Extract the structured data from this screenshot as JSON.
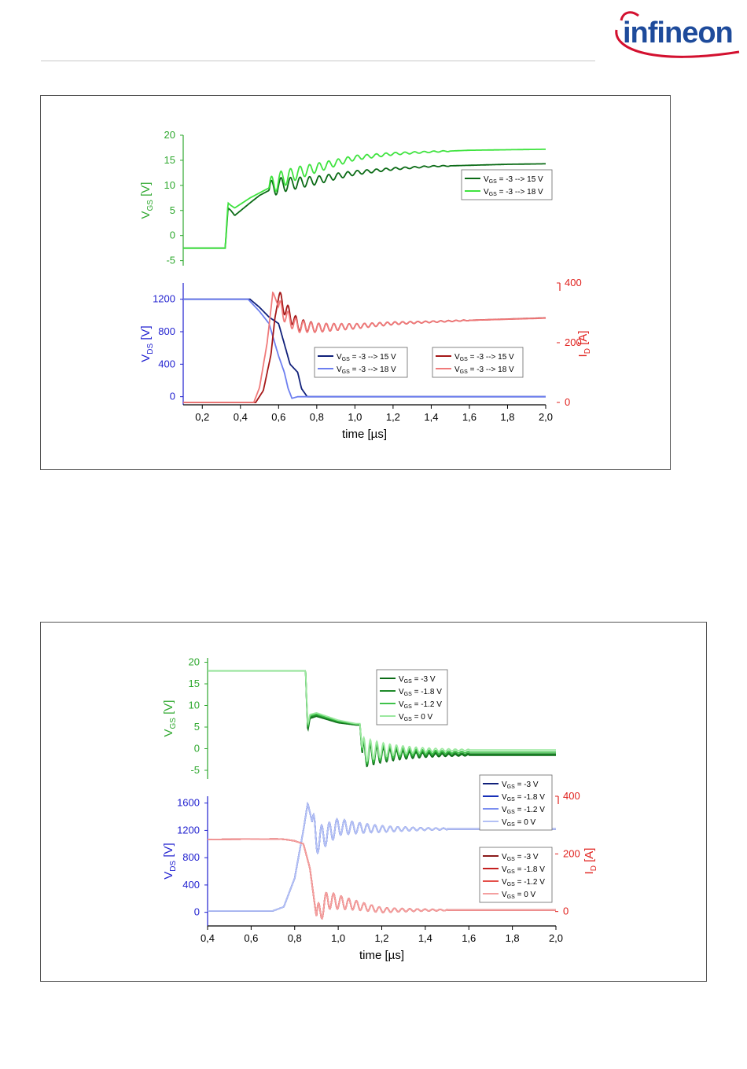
{
  "header": {
    "logo_text": "infineon",
    "colors": {
      "logo_text": "#1e4b9b",
      "logo_arc": "#d3102f",
      "rule": "#c8c8c8"
    }
  },
  "colors": {
    "vgs_axis": "#2ea82e",
    "vds_axis": "#1f1fcf",
    "id_axis": "#e0201c"
  },
  "chart_data": [
    {
      "type": "line",
      "title": "",
      "xlabel": "time [µs]",
      "xlim": [
        0.1,
        2.0
      ],
      "xticks": [
        "0,2",
        "0,4",
        "0,6",
        "0,8",
        "1,0",
        "1,2",
        "1,4",
        "1,6",
        "1,8",
        "2,0"
      ],
      "xtick_values": [
        0.2,
        0.4,
        0.6,
        0.8,
        1.0,
        1.2,
        1.4,
        1.6,
        1.8,
        2.0
      ],
      "grid": false,
      "panels": [
        {
          "name": "vgs",
          "ylabel": "V_GS [V]",
          "ylim": [
            -6,
            20
          ],
          "yticks": [
            "-5",
            "0",
            "5",
            "10",
            "15",
            "20"
          ],
          "ytick_values": [
            -5,
            0,
            5,
            10,
            15,
            20
          ],
          "legend": "right",
          "series": [
            {
              "name": "V_GS = -3 --> 15 V",
              "color": "#0b6b16",
              "x": [
                0.1,
                0.32,
                0.335,
                0.35,
                0.37,
                0.45,
                0.5,
                0.55,
                0.6,
                0.7,
                0.8,
                0.9,
                1.0,
                1.2,
                1.4,
                1.6,
                1.8,
                2.0
              ],
              "y": [
                -2.5,
                -2.5,
                5.5,
                5,
                4,
                6.5,
                8,
                9,
                10,
                10.5,
                11,
                11.8,
                12.5,
                13.3,
                13.8,
                14,
                14.2,
                14.3
              ],
              "ringing": {
                "start": 0.55,
                "end": 1.5,
                "amp": 1.8,
                "period": 0.05
              }
            },
            {
              "name": "V_GS = -3 --> 18 V",
              "color": "#3fe33f",
              "x": [
                0.1,
                0.32,
                0.335,
                0.35,
                0.37,
                0.45,
                0.5,
                0.55,
                0.6,
                0.7,
                0.8,
                0.9,
                1.0,
                1.2,
                1.4,
                1.6,
                1.8,
                2.0
              ],
              "y": [
                -2.5,
                -2.5,
                6.5,
                6,
                5.5,
                7.5,
                8.5,
                9.5,
                11,
                12.5,
                13.5,
                14.5,
                15.5,
                16.3,
                16.7,
                17,
                17.1,
                17.2
              ],
              "ringing": {
                "start": 0.55,
                "end": 1.5,
                "amp": 2.0,
                "period": 0.05
              }
            }
          ]
        },
        {
          "name": "vds_id",
          "ylabel": "V_DS [V]",
          "ylim": [
            -100,
            1400
          ],
          "yticks": [
            "0",
            "400",
            "800",
            "1200"
          ],
          "ytick_values": [
            0,
            400,
            800,
            1200
          ],
          "y2label": "I_D [A]",
          "y2lim": [
            -8,
            400
          ],
          "y2ticks": [
            "0",
            "200",
            "400"
          ],
          "y2tick_values": [
            0,
            200,
            400
          ],
          "legend": "center",
          "series_vds": [
            {
              "name": "V_GS = -3 --> 15 V",
              "color": "#10207a",
              "x": [
                0.1,
                0.45,
                0.5,
                0.55,
                0.6,
                0.63,
                0.66,
                0.7,
                0.72,
                0.75,
                2.0
              ],
              "y": [
                1200,
                1200,
                1100,
                980,
                900,
                650,
                400,
                300,
                100,
                0,
                0
              ]
            },
            {
              "name": "V_GS = -3 --> 18 V",
              "color": "#6d7ff0",
              "x": [
                0.1,
                0.44,
                0.5,
                0.55,
                0.6,
                0.63,
                0.65,
                0.67,
                0.7,
                2.0
              ],
              "y": [
                1200,
                1200,
                1050,
                900,
                500,
                300,
                100,
                -20,
                0,
                0
              ]
            }
          ],
          "series_id": [
            {
              "name": "V_GS = -3 --> 15 V",
              "color": "#a51818",
              "x": [
                0.1,
                0.48,
                0.52,
                0.56,
                0.58,
                0.6,
                0.65,
                0.7,
                0.8,
                1.0,
                1.2,
                1.6,
                2.0
              ],
              "y": [
                0,
                0,
                40,
                160,
                280,
                350,
                300,
                260,
                250,
                255,
                265,
                275,
                283
              ],
              "ringing": {
                "start": 0.6,
                "end": 1.6,
                "amp": 28,
                "period": 0.04
              }
            },
            {
              "name": "V_GS = -3 --> 18 V",
              "color": "#f07a7a",
              "x": [
                0.1,
                0.47,
                0.5,
                0.54,
                0.57,
                0.6,
                0.65,
                0.7,
                0.8,
                1.0,
                1.2,
                1.6,
                2.0
              ],
              "y": [
                0,
                0,
                50,
                200,
                370,
                320,
                280,
                255,
                250,
                255,
                265,
                275,
                282
              ],
              "ringing": {
                "start": 0.6,
                "end": 1.6,
                "amp": 28,
                "period": 0.04
              }
            }
          ]
        }
      ]
    },
    {
      "type": "line",
      "title": "",
      "xlabel": "time [µs]",
      "xlim": [
        0.4,
        2.0
      ],
      "xticks": [
        "0,4",
        "0,6",
        "0,8",
        "1,0",
        "1,2",
        "1,4",
        "1,6",
        "1,8",
        "2,0"
      ],
      "xtick_values": [
        0.4,
        0.6,
        0.8,
        1.0,
        1.2,
        1.4,
        1.6,
        1.8,
        2.0
      ],
      "grid": false,
      "panels": [
        {
          "name": "vgs",
          "ylabel": "V_GS [V]",
          "ylim": [
            -7,
            21
          ],
          "yticks": [
            "-5",
            "0",
            "5",
            "10",
            "15",
            "20"
          ],
          "ytick_values": [
            -5,
            0,
            5,
            10,
            15,
            20
          ],
          "legend": "top-right",
          "series": [
            {
              "name": "V_GS = -3 V",
              "color": "#0b6b16",
              "x": [
                0.4,
                0.85,
                0.86,
                0.87,
                0.9,
                1.0,
                1.08,
                1.1,
                1.11,
                2.0
              ],
              "y": [
                18,
                18,
                4,
                7,
                7.5,
                6,
                5.5,
                5.5,
                -1.5,
                -1.5
              ],
              "ringing": {
                "start": 1.11,
                "end": 1.6,
                "amp": 3,
                "period": 0.03
              }
            },
            {
              "name": "V_GS = -1.8 V",
              "color": "#1f8a2a",
              "x": [
                0.4,
                0.85,
                0.86,
                0.87,
                0.9,
                1.0,
                1.08,
                1.1,
                1.11,
                2.0
              ],
              "y": [
                18,
                18,
                4.5,
                7.3,
                7.7,
                6.2,
                5.6,
                5.6,
                -1.2,
                -1.2
              ],
              "ringing": {
                "start": 1.11,
                "end": 1.6,
                "amp": 3,
                "period": 0.03
              }
            },
            {
              "name": "V_GS = -1.2 V",
              "color": "#3fc24a",
              "x": [
                0.4,
                0.85,
                0.86,
                0.87,
                0.9,
                1.0,
                1.08,
                1.1,
                1.11,
                2.0
              ],
              "y": [
                18,
                18,
                5,
                7.6,
                8,
                6.4,
                5.7,
                5.7,
                -0.8,
                -0.8
              ],
              "ringing": {
                "start": 1.11,
                "end": 1.6,
                "amp": 3,
                "period": 0.03
              }
            },
            {
              "name": "V_GS = 0 V",
              "color": "#9be89f",
              "x": [
                0.4,
                0.85,
                0.86,
                0.87,
                0.9,
                1.0,
                1.08,
                1.1,
                1.11,
                2.0
              ],
              "y": [
                18,
                18,
                5.5,
                7.9,
                8.3,
                6.6,
                5.8,
                5.8,
                -0.3,
                -0.3
              ],
              "ringing": {
                "start": 1.11,
                "end": 1.6,
                "amp": 3,
                "period": 0.03
              }
            }
          ]
        },
        {
          "name": "vds_id",
          "ylabel": "V_DS [V]",
          "ylim": [
            -200,
            1700
          ],
          "yticks": [
            "0",
            "400",
            "800",
            "1200",
            "1600"
          ],
          "ytick_values": [
            0,
            400,
            800,
            1200,
            1600
          ],
          "y2label": "I_D [A]",
          "y2lim": [
            -50,
            400
          ],
          "y2ticks": [
            "0",
            "200",
            "400"
          ],
          "y2tick_values": [
            0,
            200,
            400
          ],
          "legend": "right",
          "series_vds": [
            {
              "name": "V_GS = -3 V",
              "color": "#10207a",
              "x": [
                0.4,
                0.7,
                0.75,
                0.8,
                0.84,
                0.86,
                0.9,
                1.0,
                1.2,
                2.0
              ],
              "y": [
                20,
                20,
                80,
                500,
                1200,
                1600,
                1050,
                1250,
                1220,
                1220
              ],
              "ringing": {
                "start": 0.88,
                "end": 1.5,
                "amp": 220,
                "period": 0.035
              }
            },
            {
              "name": "V_GS = -1.8 V",
              "color": "#1730b8",
              "x": [
                0.4,
                0.7,
                0.75,
                0.8,
                0.84,
                0.86,
                0.9,
                1.0,
                1.2,
                2.0
              ],
              "y": [
                20,
                20,
                80,
                500,
                1200,
                1600,
                1050,
                1250,
                1220,
                1220
              ],
              "ringing": {
                "start": 0.88,
                "end": 1.5,
                "amp": 220,
                "period": 0.035
              }
            },
            {
              "name": "V_GS = -1.2 V",
              "color": "#7b8ef0",
              "x": [
                0.4,
                0.7,
                0.75,
                0.8,
                0.84,
                0.86,
                0.9,
                1.0,
                1.2,
                2.0
              ],
              "y": [
                20,
                20,
                80,
                500,
                1200,
                1600,
                1050,
                1250,
                1220,
                1220
              ],
              "ringing": {
                "start": 0.88,
                "end": 1.5,
                "amp": 220,
                "period": 0.035
              }
            },
            {
              "name": "V_GS = 0 V",
              "color": "#b3c0f5",
              "x": [
                0.4,
                0.7,
                0.75,
                0.8,
                0.84,
                0.86,
                0.9,
                1.0,
                1.2,
                2.0
              ],
              "y": [
                20,
                20,
                80,
                500,
                1200,
                1600,
                1050,
                1250,
                1220,
                1220
              ],
              "ringing": {
                "start": 0.88,
                "end": 1.5,
                "amp": 220,
                "period": 0.035
              }
            }
          ],
          "series_id": [
            {
              "name": "V_GS = -3 V",
              "color": "#8a1a1a",
              "x": [
                0.4,
                0.72,
                0.76,
                0.8,
                0.84,
                0.87,
                0.9,
                0.95,
                1.2,
                2.0
              ],
              "y": [
                250,
                252,
                250,
                245,
                235,
                150,
                -20,
                40,
                5,
                5
              ],
              "ringing": {
                "start": 0.9,
                "end": 1.5,
                "amp": 40,
                "period": 0.035
              }
            },
            {
              "name": "V_GS = -1.8 V",
              "color": "#c42020",
              "x": [
                0.4,
                0.72,
                0.76,
                0.8,
                0.84,
                0.87,
                0.9,
                0.95,
                1.2,
                2.0
              ],
              "y": [
                250,
                252,
                250,
                245,
                235,
                150,
                -20,
                40,
                5,
                5
              ],
              "ringing": {
                "start": 0.9,
                "end": 1.5,
                "amp": 40,
                "period": 0.035
              }
            },
            {
              "name": "V_GS = -1.2 V",
              "color": "#e4504a",
              "x": [
                0.4,
                0.72,
                0.76,
                0.8,
                0.84,
                0.87,
                0.9,
                0.95,
                1.2,
                2.0
              ],
              "y": [
                250,
                252,
                250,
                245,
                235,
                150,
                -20,
                40,
                5,
                5
              ],
              "ringing": {
                "start": 0.9,
                "end": 1.5,
                "amp": 40,
                "period": 0.035
              }
            },
            {
              "name": "V_GS = 0 V",
              "color": "#f4a0a0",
              "x": [
                0.4,
                0.72,
                0.76,
                0.8,
                0.84,
                0.87,
                0.9,
                0.95,
                1.2,
                2.0
              ],
              "y": [
                250,
                252,
                250,
                245,
                235,
                150,
                -20,
                40,
                5,
                5
              ],
              "ringing": {
                "start": 0.9,
                "end": 1.5,
                "amp": 40,
                "period": 0.035
              }
            }
          ]
        }
      ]
    }
  ]
}
